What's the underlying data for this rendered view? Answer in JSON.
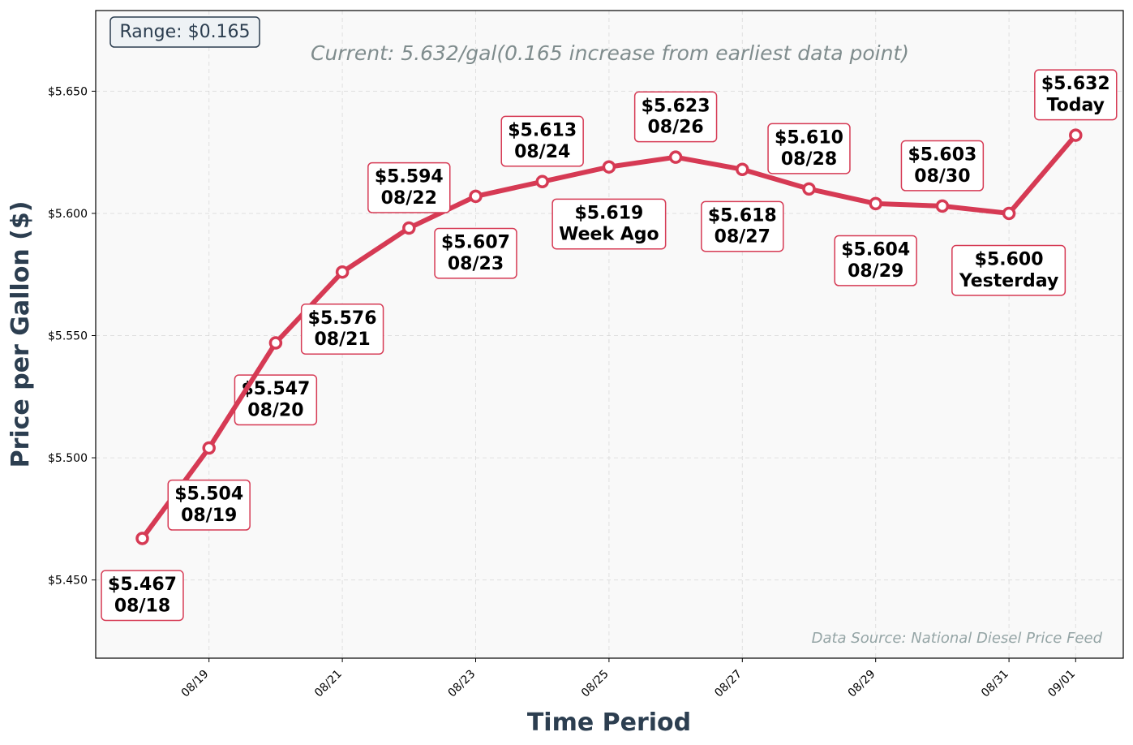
{
  "chart_data": {
    "type": "line",
    "title": "",
    "subtitle": "Current: 5.632/gal(0.165 increase from earliest data point)",
    "range_label": "Range: $0.165",
    "source_note": "Data Source: National Diesel Price Feed",
    "xlabel": "Time Period",
    "ylabel": "Price per Gallon ($)",
    "ylim": [
      5.418,
      5.683
    ],
    "y_ticks": [
      5.45,
      5.5,
      5.55,
      5.6,
      5.65
    ],
    "y_tick_labels": [
      "$5.450",
      "$5.500",
      "$5.550",
      "$5.600",
      "$5.650"
    ],
    "x_ticks": [
      "08/19",
      "08/21",
      "08/23",
      "08/25",
      "08/27",
      "08/29",
      "08/31",
      "09/01"
    ],
    "grid": true,
    "series": [
      {
        "name": "",
        "color": "#d63a54",
        "x": [
          "08/18",
          "08/19",
          "08/20",
          "08/21",
          "08/22",
          "08/23",
          "08/24",
          "08/25",
          "08/26",
          "08/27",
          "08/28",
          "08/29",
          "08/30",
          "08/31",
          "09/01"
        ],
        "values": [
          5.467,
          5.504,
          5.547,
          5.576,
          5.594,
          5.607,
          5.613,
          5.619,
          5.623,
          5.618,
          5.61,
          5.604,
          5.603,
          5.6,
          5.632
        ]
      }
    ],
    "annotations": [
      {
        "price": "$5.467",
        "label": "08/18",
        "placement": "below"
      },
      {
        "price": "$5.504",
        "label": "08/19",
        "placement": "below"
      },
      {
        "price": "$5.547",
        "label": "08/20",
        "placement": "below"
      },
      {
        "price": "$5.576",
        "label": "08/21",
        "placement": "below"
      },
      {
        "price": "$5.594",
        "label": "08/22",
        "placement": "above"
      },
      {
        "price": "$5.607",
        "label": "08/23",
        "placement": "below"
      },
      {
        "price": "$5.613",
        "label": "08/24",
        "placement": "above"
      },
      {
        "price": "$5.619",
        "label": "Week Ago",
        "placement": "below"
      },
      {
        "price": "$5.623",
        "label": "08/26",
        "placement": "above"
      },
      {
        "price": "$5.618",
        "label": "08/27",
        "placement": "below"
      },
      {
        "price": "$5.610",
        "label": "08/28",
        "placement": "above"
      },
      {
        "price": "$5.604",
        "label": "08/29",
        "placement": "below"
      },
      {
        "price": "$5.603",
        "label": "08/30",
        "placement": "above"
      },
      {
        "price": "$5.600",
        "label": "Yesterday",
        "placement": "below"
      },
      {
        "price": "$5.632",
        "label": "Today",
        "placement": "above"
      }
    ]
  },
  "colors": {
    "line": "#d63a54",
    "plot_background": "#f9f9f9",
    "axis_title": "#2c3e50",
    "subtitle": "#7f8c8d",
    "source": "#95a5a6",
    "range_box_fill": "#eef2f5"
  }
}
